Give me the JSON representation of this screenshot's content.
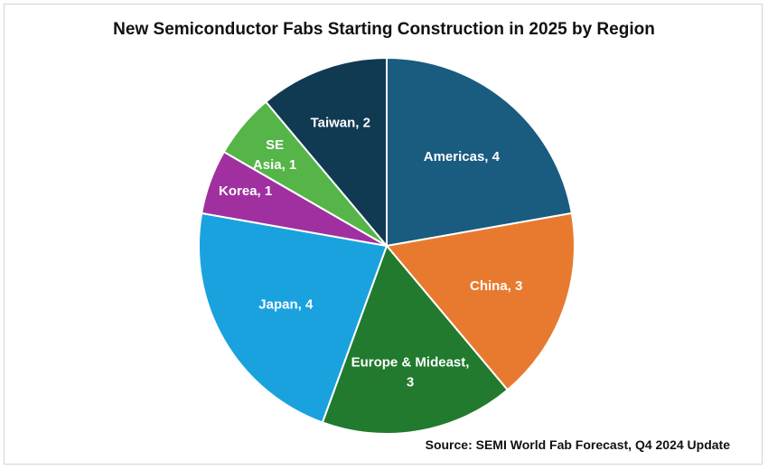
{
  "chart_data": {
    "type": "pie",
    "title": "New Semiconductor Fabs Starting Construction in 2025 by Region",
    "source": "Source: SEMI World Fab Forecast, Q4 2024 Update",
    "slices": [
      {
        "label": "Americas",
        "value": 4,
        "color": "#1a5b80",
        "text_lines": [
          "Americas, 4"
        ]
      },
      {
        "label": "China",
        "value": 3,
        "color": "#e87a2f",
        "text_lines": [
          "China, 3"
        ]
      },
      {
        "label": "Europe & Mideast",
        "value": 3,
        "color": "#217a2e",
        "text_lines": [
          "Europe & Mideast,",
          "3"
        ]
      },
      {
        "label": "Japan",
        "value": 4,
        "color": "#1aa2de",
        "text_lines": [
          "Japan, 4"
        ]
      },
      {
        "label": "Korea",
        "value": 1,
        "color": "#a030a0",
        "text_lines": [
          "Korea, 1"
        ]
      },
      {
        "label": "SE Asia",
        "value": 1,
        "color": "#55b548",
        "text_lines": [
          "SE",
          "Asia, 1"
        ]
      },
      {
        "label": "Taiwan",
        "value": 2,
        "color": "#103a52",
        "text_lines": [
          "Taiwan, 2"
        ]
      }
    ],
    "legend": "none",
    "data_labels": "inside slices"
  }
}
